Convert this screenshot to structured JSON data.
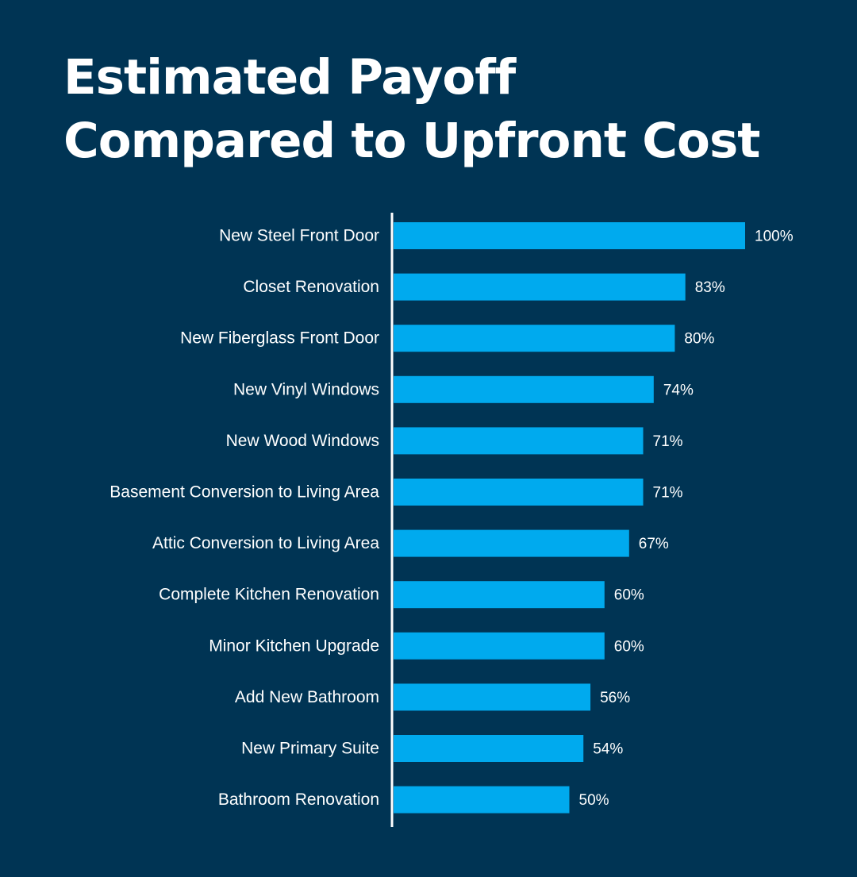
{
  "colors": {
    "background": "#003454",
    "bar": "#00AAEE",
    "text": "#ffffff",
    "axis": "#ffffff"
  },
  "chart_data": {
    "type": "bar",
    "orientation": "horizontal",
    "title_lines": [
      "Estimated Payoff",
      "Compared to Upfront Cost"
    ],
    "categories": [
      "New Steel Front Door",
      "Closet Renovation",
      "New Fiberglass Front Door",
      "New Vinyl Windows",
      "New Wood Windows",
      "Basement Conversion to Living Area",
      "Attic Conversion to Living Area",
      "Complete Kitchen Renovation",
      "Minor Kitchen Upgrade",
      "Add New Bathroom",
      "New Primary Suite",
      "Bathroom Renovation"
    ],
    "values": [
      100,
      83,
      80,
      74,
      71,
      71,
      67,
      60,
      60,
      56,
      54,
      50
    ],
    "value_labels": [
      "100%",
      "83%",
      "80%",
      "74%",
      "71%",
      "71%",
      "67%",
      "60%",
      "60%",
      "56%",
      "54%",
      "50%"
    ],
    "xlim": [
      0,
      100
    ],
    "grid": false,
    "legend": "none"
  }
}
